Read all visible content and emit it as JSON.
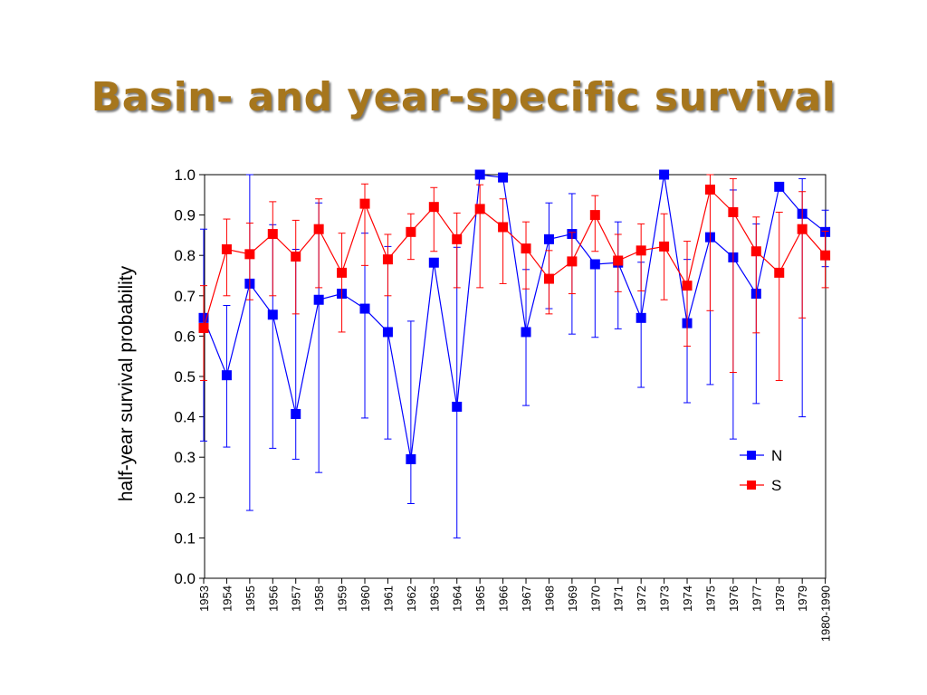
{
  "slide": {
    "title": "Basin- and year-specific survival"
  },
  "chart_data": {
    "type": "line",
    "ylabel": "half-year survival probability",
    "xlabel": "",
    "ylim": [
      0,
      1
    ],
    "yticks": [
      "0.0",
      "0.1",
      "0.2",
      "0.3",
      "0.4",
      "0.5",
      "0.6",
      "0.7",
      "0.8",
      "0.9",
      "1.0"
    ],
    "categories": [
      "1953",
      "1954",
      "1955",
      "1956",
      "1957",
      "1958",
      "1959",
      "1960",
      "1961",
      "1962",
      "1963",
      "1964",
      "1965",
      "1966",
      "1967",
      "1968",
      "1969",
      "1970",
      "1971",
      "1972",
      "1973",
      "1974",
      "1975",
      "1976",
      "1977",
      "1978",
      "1979",
      "1980-1990"
    ],
    "legend_position": "right",
    "series": [
      {
        "name": "N",
        "color": "#0000ff",
        "values": [
          0.645,
          0.503,
          0.73,
          0.653,
          0.407,
          0.69,
          0.705,
          0.668,
          0.61,
          0.295,
          0.782,
          0.425,
          1.0,
          0.993,
          0.61,
          0.84,
          0.853,
          0.778,
          0.782,
          0.645,
          1.0,
          0.632,
          0.845,
          0.795,
          0.705,
          0.97,
          0.903,
          0.858
        ],
        "lower": [
          0.34,
          0.325,
          0.168,
          0.322,
          0.295,
          0.262,
          0.705,
          0.397,
          0.345,
          0.185,
          0.782,
          0.1,
          1.0,
          0.993,
          0.428,
          0.668,
          0.605,
          0.597,
          0.618,
          0.473,
          1.0,
          0.435,
          0.48,
          0.345,
          0.433,
          0.97,
          0.4,
          0.772
        ],
        "upper": [
          0.865,
          0.676,
          1.0,
          0.876,
          0.815,
          0.93,
          0.705,
          0.855,
          0.822,
          0.637,
          0.782,
          0.82,
          1.0,
          0.993,
          0.765,
          0.93,
          0.953,
          0.778,
          0.883,
          0.783,
          1.0,
          0.79,
          0.845,
          0.962,
          0.878,
          0.97,
          0.99,
          0.912
        ]
      },
      {
        "name": "S",
        "color": "#ff0000",
        "values": [
          0.62,
          0.815,
          0.803,
          0.853,
          0.797,
          0.865,
          0.757,
          0.928,
          0.79,
          0.858,
          0.92,
          0.84,
          0.915,
          0.87,
          0.817,
          0.742,
          0.785,
          0.9,
          0.787,
          0.812,
          0.822,
          0.725,
          0.963,
          0.907,
          0.81,
          0.757,
          0.865,
          0.8
        ],
        "lower": [
          0.49,
          0.7,
          0.69,
          0.7,
          0.655,
          0.72,
          0.61,
          0.775,
          0.7,
          0.79,
          0.81,
          0.72,
          0.72,
          0.73,
          0.717,
          0.655,
          0.705,
          0.81,
          0.71,
          0.712,
          0.69,
          0.575,
          0.663,
          0.51,
          0.608,
          0.49,
          0.645,
          0.72
        ],
        "upper": [
          0.725,
          0.89,
          0.88,
          0.933,
          0.887,
          0.94,
          0.855,
          0.977,
          0.852,
          0.903,
          0.968,
          0.905,
          0.975,
          0.94,
          0.883,
          0.812,
          0.857,
          0.948,
          0.852,
          0.878,
          0.903,
          0.835,
          1.0,
          0.99,
          0.895,
          0.907,
          0.958,
          0.86
        ]
      }
    ]
  }
}
